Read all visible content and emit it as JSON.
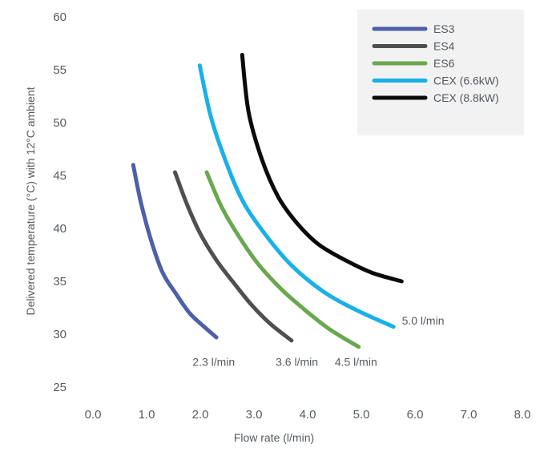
{
  "chart_data": {
    "type": "line",
    "title": "",
    "xlabel": "Flow rate (l/min)",
    "ylabel": "Delivered temperature (°C) with 12°C ambient",
    "xlim": [
      0,
      8
    ],
    "ylim": [
      25,
      60
    ],
    "x_ticks": [
      "0.0",
      "1.0",
      "2.0",
      "3.0",
      "4.0",
      "5.0",
      "6.0",
      "7.0",
      "8.0"
    ],
    "y_ticks": [
      "25",
      "30",
      "35",
      "40",
      "45",
      "50",
      "55",
      "60"
    ],
    "grid": false,
    "legend_position": "top-right",
    "series": [
      {
        "name": "ES3",
        "color": "#4d5fa8",
        "x": [
          0.75,
          0.9,
          1.1,
          1.3,
          1.55,
          1.8,
          2.05,
          2.3
        ],
        "y": [
          46.0,
          42.3,
          38.6,
          35.8,
          33.8,
          32.0,
          30.8,
          29.7
        ]
      },
      {
        "name": "ES4",
        "color": "#4e4f51",
        "x": [
          1.53,
          1.75,
          2.0,
          2.3,
          2.6,
          2.95,
          3.3,
          3.7
        ],
        "y": [
          45.3,
          42.3,
          39.5,
          37.0,
          35.0,
          32.8,
          31.0,
          29.4
        ]
      },
      {
        "name": "ES6",
        "color": "#6aa84f",
        "x": [
          2.12,
          2.4,
          2.75,
          3.1,
          3.5,
          3.9,
          4.4,
          4.95
        ],
        "y": [
          45.3,
          42.0,
          39.0,
          36.5,
          34.3,
          32.5,
          30.5,
          28.8
        ]
      },
      {
        "name": "CEX (6.6kW)",
        "color": "#1ab0e8",
        "x": [
          1.99,
          2.2,
          2.5,
          2.8,
          3.2,
          3.7,
          4.3,
          4.9,
          5.6
        ],
        "y": [
          55.4,
          50.5,
          46.0,
          42.5,
          39.5,
          36.5,
          34.0,
          32.3,
          30.7
        ]
      },
      {
        "name": "CEX (8.8kW)",
        "color": "#0b0b0b",
        "x": [
          2.78,
          2.9,
          3.15,
          3.45,
          3.8,
          4.2,
          4.7,
          5.2,
          5.75
        ],
        "y": [
          56.4,
          51.0,
          46.5,
          43.0,
          40.5,
          38.5,
          37.0,
          35.8,
          35.0
        ]
      }
    ],
    "annotations": [
      {
        "text": "2.3 l/min",
        "x": 2.25,
        "y": 27.0
      },
      {
        "text": "3.6 l/min",
        "x": 3.8,
        "y": 27.0
      },
      {
        "text": "4.5 l/min",
        "x": 4.9,
        "y": 27.0
      },
      {
        "text": "5.0 l/min",
        "x": 6.15,
        "y": 30.9
      }
    ]
  }
}
